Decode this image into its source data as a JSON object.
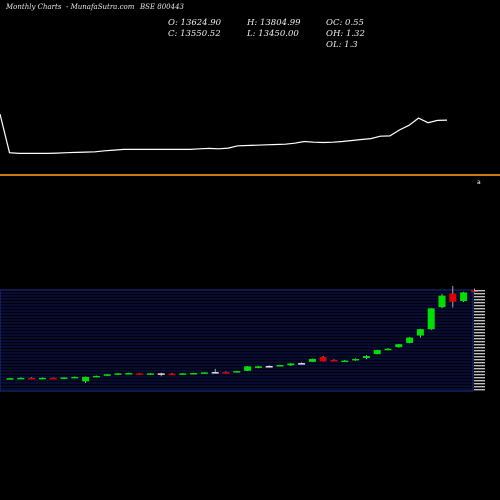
{
  "header": {
    "chart_label": "Monthly Charts",
    "site": "- MunafaSutra.com",
    "symbol": "BSE 800443"
  },
  "ohlc": {
    "open": "O: 13624.90",
    "high": "H: 13804.99",
    "open_close": "OC: 0.55",
    "close": "C: 13550.52",
    "low": "L: 13450.00",
    "open_high": "OH: 1.32",
    "open_low": "OL: 1.3"
  },
  "colors": {
    "background": "#000000",
    "line": "#ffffff",
    "separator": "#c87814",
    "grid": "#1f2f8c",
    "up": "#00e000",
    "down": "#e00000",
    "neutral": "#e0e0e0"
  },
  "chart_data": [
    {
      "type": "line",
      "title": "",
      "series": [
        {
          "values": [
            13.9,
            2.2,
            2.0,
            2.0,
            2.0,
            2.0,
            2.1,
            2.2,
            2.3,
            2.4,
            2.5,
            2.8,
            3.0,
            3.2,
            3.2,
            3.2,
            3.2,
            3.2,
            3.2,
            3.2,
            3.2,
            3.4,
            3.5,
            3.4,
            3.6,
            4.3,
            4.4,
            4.5,
            4.6,
            4.7,
            4.8,
            5.1,
            5.6,
            5.4,
            5.3,
            5.4,
            5.6,
            5.9,
            6.2,
            6.5,
            7.2,
            7.3,
            9.1,
            10.5,
            12.7,
            11.3,
            12.0,
            12.1
          ]
        }
      ]
    },
    {
      "type": "candlestick",
      "title": "",
      "series": [
        {
          "candles": [
            {
              "o": 1.0,
              "h": 1.3,
              "l": 0.9,
              "c": 1.2,
              "dir": "up"
            },
            {
              "o": 1.2,
              "h": 1.4,
              "l": 1.0,
              "c": 1.3,
              "dir": "up"
            },
            {
              "o": 1.3,
              "h": 1.5,
              "l": 1.1,
              "c": 1.2,
              "dir": "down"
            },
            {
              "o": 1.2,
              "h": 1.4,
              "l": 1.0,
              "c": 1.3,
              "dir": "up"
            },
            {
              "o": 1.3,
              "h": 1.4,
              "l": 1.1,
              "c": 1.1,
              "dir": "down"
            },
            {
              "o": 1.2,
              "h": 1.5,
              "l": 1.1,
              "c": 1.4,
              "dir": "up"
            },
            {
              "o": 1.4,
              "h": 1.7,
              "l": 1.3,
              "c": 1.6,
              "dir": "up"
            },
            {
              "o": 1.6,
              "h": 1.7,
              "l": -0.3,
              "c": 0.2,
              "dir": "up"
            },
            {
              "o": 1.6,
              "h": 2.0,
              "l": 1.5,
              "c": 1.9,
              "dir": "up"
            },
            {
              "o": 2.0,
              "h": 2.5,
              "l": 1.9,
              "c": 2.4,
              "dir": "up"
            },
            {
              "o": 2.4,
              "h": 2.8,
              "l": 2.3,
              "c": 2.7,
              "dir": "up"
            },
            {
              "o": 2.7,
              "h": 2.9,
              "l": 2.5,
              "c": 2.8,
              "dir": "up"
            },
            {
              "o": 2.7,
              "h": 2.8,
              "l": 2.5,
              "c": 2.6,
              "dir": "down"
            },
            {
              "o": 2.7,
              "h": 2.8,
              "l": 2.5,
              "c": 2.7,
              "dir": "up"
            },
            {
              "o": 2.7,
              "h": 2.9,
              "l": 1.8,
              "c": 2.6,
              "dir": "neutral"
            },
            {
              "o": 2.6,
              "h": 2.8,
              "l": 2.4,
              "c": 2.5,
              "dir": "down"
            },
            {
              "o": 2.6,
              "h": 2.8,
              "l": 2.5,
              "c": 2.7,
              "dir": "up"
            },
            {
              "o": 2.6,
              "h": 2.9,
              "l": 2.4,
              "c": 2.8,
              "dir": "up"
            },
            {
              "o": 2.8,
              "h": 3.1,
              "l": 2.7,
              "c": 3.0,
              "dir": "up"
            },
            {
              "o": 3.0,
              "h": 4.1,
              "l": 2.9,
              "c": 3.1,
              "dir": "neutral"
            },
            {
              "o": 3.1,
              "h": 3.3,
              "l": 2.7,
              "c": 2.9,
              "dir": "down"
            },
            {
              "o": 3.1,
              "h": 3.5,
              "l": 3.0,
              "c": 3.4,
              "dir": "up"
            },
            {
              "o": 3.5,
              "h": 5.0,
              "l": 3.4,
              "c": 4.9,
              "dir": "up"
            },
            {
              "o": 4.4,
              "h": 5.0,
              "l": 4.3,
              "c": 4.9,
              "dir": "up"
            },
            {
              "o": 5.0,
              "h": 5.2,
              "l": 4.8,
              "c": 5.0,
              "dir": "neutral"
            },
            {
              "o": 5.0,
              "h": 5.4,
              "l": 4.9,
              "c": 5.3,
              "dir": "up"
            },
            {
              "o": 5.2,
              "h": 5.9,
              "l": 5.0,
              "c": 5.8,
              "dir": "up"
            },
            {
              "o": 5.9,
              "h": 6.1,
              "l": 5.6,
              "c": 5.9,
              "dir": "neutral"
            },
            {
              "o": 6.3,
              "h": 7.3,
              "l": 6.2,
              "c": 7.2,
              "dir": "up"
            },
            {
              "o": 7.8,
              "h": 8.1,
              "l": 6.4,
              "c": 6.5,
              "dir": "down"
            },
            {
              "o": 6.9,
              "h": 7.1,
              "l": 6.5,
              "c": 6.6,
              "dir": "down"
            },
            {
              "o": 6.6,
              "h": 6.9,
              "l": 6.4,
              "c": 6.7,
              "dir": "up"
            },
            {
              "o": 6.8,
              "h": 7.4,
              "l": 6.6,
              "c": 7.2,
              "dir": "up"
            },
            {
              "o": 7.5,
              "h": 8.4,
              "l": 7.1,
              "c": 8.1,
              "dir": "up"
            },
            {
              "o": 8.7,
              "h": 10.1,
              "l": 8.6,
              "c": 10.0,
              "dir": "up"
            },
            {
              "o": 10.1,
              "h": 10.6,
              "l": 9.9,
              "c": 10.4,
              "dir": "up"
            },
            {
              "o": 10.9,
              "h": 11.9,
              "l": 10.7,
              "c": 11.8,
              "dir": "up"
            },
            {
              "o": 12.2,
              "h": 14.1,
              "l": 12.1,
              "c": 13.9,
              "dir": "up"
            },
            {
              "o": 14.5,
              "h": 16.6,
              "l": 13.9,
              "c": 16.5,
              "dir": "up"
            },
            {
              "o": 16.5,
              "h": 23.1,
              "l": 16.2,
              "c": 23.0,
              "dir": "up"
            },
            {
              "o": 23.4,
              "h": 27.5,
              "l": 23.1,
              "c": 27.0,
              "dir": "up"
            },
            {
              "o": 27.6,
              "h": 30.0,
              "l": 23.3,
              "c": 25.1,
              "dir": "down"
            },
            {
              "o": 25.3,
              "h": 28.2,
              "l": 25.0,
              "c": 28.0,
              "dir": "up"
            },
            {
              "o": 28.6,
              "h": 29.2,
              "l": 28.0,
              "c": 28.3,
              "dir": "down"
            }
          ]
        }
      ]
    }
  ]
}
